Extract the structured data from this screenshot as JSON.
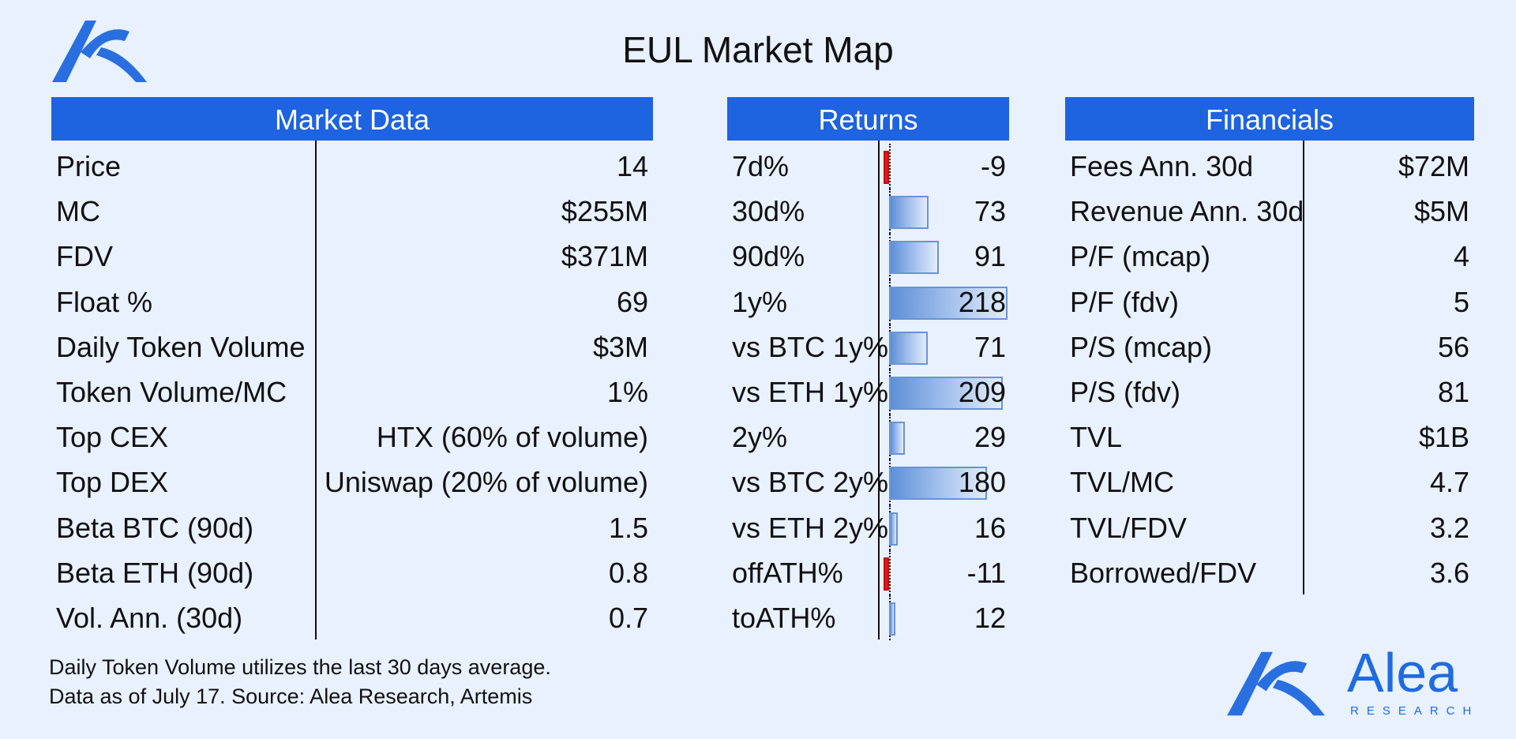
{
  "title": "EUL Market Map",
  "colors": {
    "header": "#1e63e0",
    "background": "#e8f1fd",
    "positive_bar": "#5e8fd6",
    "negative_bar": "#e31b1b",
    "brand": "#1f6be0"
  },
  "market_data": {
    "header": "Market Data",
    "rows": [
      {
        "label": "Price",
        "value": "14"
      },
      {
        "label": "MC",
        "value": "$255M"
      },
      {
        "label": "FDV",
        "value": "$371M"
      },
      {
        "label": "Float %",
        "value": "69"
      },
      {
        "label": "Daily Token Volume",
        "value": "$3M"
      },
      {
        "label": "Token Volume/MC",
        "value": "1%"
      },
      {
        "label": "Top CEX",
        "value": "HTX (60% of volume)"
      },
      {
        "label": "Top DEX",
        "value": "Uniswap (20% of volume)"
      },
      {
        "label": "Beta BTC (90d)",
        "value": "1.5"
      },
      {
        "label": "Beta ETH (90d)",
        "value": "0.8"
      },
      {
        "label": "Vol. Ann. (30d)",
        "value": "0.7"
      }
    ]
  },
  "returns": {
    "header": "Returns"
  },
  "chart_data": {
    "type": "bar",
    "orientation": "horizontal",
    "categories": [
      "7d%",
      "30d%",
      "90d%",
      "1y%",
      "vs BTC 1y%",
      "vs ETH 1y%",
      "2y%",
      "vs BTC 2y%",
      "vs ETH 2y%",
      "offATH%",
      "toATH%"
    ],
    "values": [
      -9,
      73,
      91,
      218,
      71,
      209,
      29,
      180,
      16,
      -11,
      12
    ],
    "xlim": [
      -20,
      218
    ]
  },
  "financials": {
    "header": "Financials",
    "rows": [
      {
        "label": "Fees Ann. 30d",
        "value": "$72M"
      },
      {
        "label": "Revenue Ann. 30d",
        "value": "$5M"
      },
      {
        "label": "P/F (mcap)",
        "value": "4"
      },
      {
        "label": "P/F (fdv)",
        "value": "5"
      },
      {
        "label": "P/S (mcap)",
        "value": "56"
      },
      {
        "label": "P/S (fdv)",
        "value": "81"
      },
      {
        "label": "TVL",
        "value": "$1B"
      },
      {
        "label": "TVL/MC",
        "value": "4.7"
      },
      {
        "label": "TVL/FDV",
        "value": "3.2"
      },
      {
        "label": "Borrowed/FDV",
        "value": "3.6"
      }
    ]
  },
  "footnotes": [
    "Daily Token Volume utilizes the last 30 days average.",
    "Data as of July 17. Source: Alea Research, Artemis"
  ],
  "brand": {
    "name": "Alea",
    "subtitle": "RESEARCH",
    "logo_icon": "alea-logo-icon"
  }
}
